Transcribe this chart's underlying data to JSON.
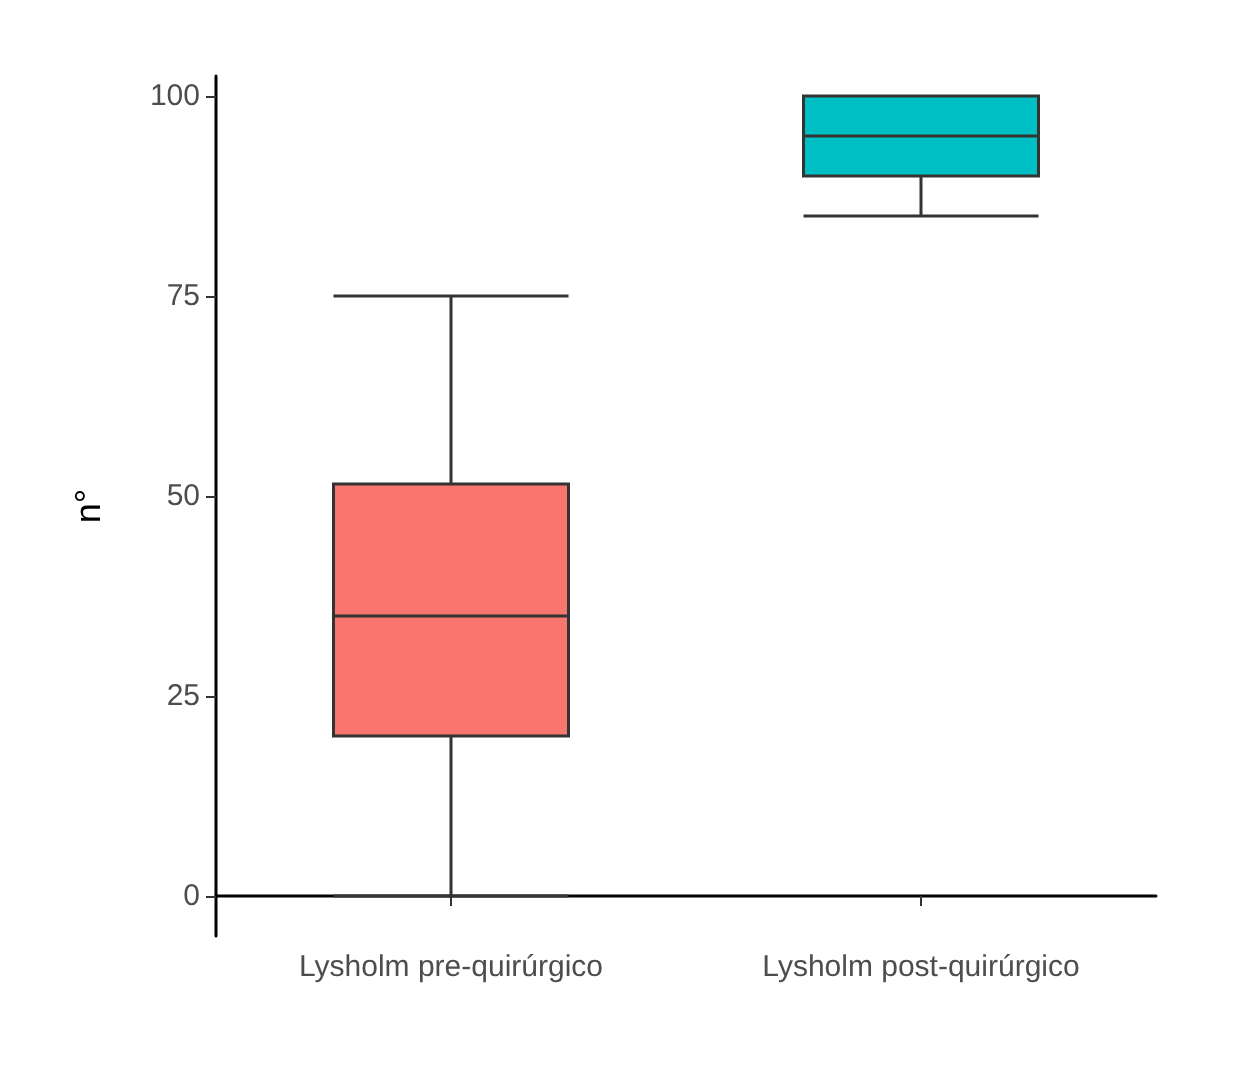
{
  "chart_data": {
    "type": "box",
    "ylabel": "n°",
    "categories": [
      "Lysholm pre-quirúrgico",
      "Lysholm post-quirúrgico"
    ],
    "boxes": [
      {
        "low": 0,
        "q1": 20,
        "median": 35,
        "q3": 51.5,
        "high": 75
      },
      {
        "low": 85,
        "q1": 90,
        "median": 95,
        "q3": 100,
        "high": 100
      }
    ],
    "colors": [
      "#f8766d",
      "#00bfc4"
    ],
    "ylim": [
      -5,
      102.5
    ],
    "yticks": [
      0,
      25,
      50,
      75,
      100
    ],
    "grid": false
  }
}
